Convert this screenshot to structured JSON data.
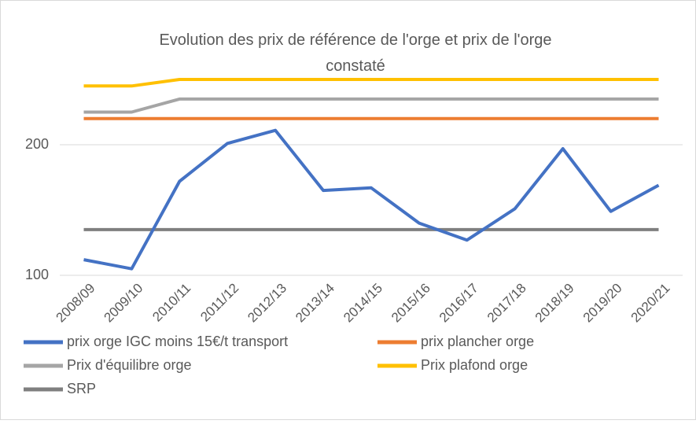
{
  "chart_data": {
    "type": "line",
    "title": "Evolution des prix de référence de l'orge et prix de l'orge constaté",
    "categories": [
      "2008/09",
      "2009/10",
      "2010/11",
      "2011/12",
      "2012/13",
      "2013/14",
      "2014/15",
      "2015/16",
      "2016/17",
      "2017/18",
      "2018/19",
      "2019/20",
      "2020/21"
    ],
    "series": [
      {
        "name": "prix orge IGC moins 15€/t transport",
        "color": "#4472c4",
        "values": [
          112,
          105,
          172,
          201,
          211,
          165,
          167,
          140,
          127,
          151,
          197,
          149,
          169
        ]
      },
      {
        "name": "prix plancher orge",
        "color": "#ed7d31",
        "values": [
          220,
          220,
          220,
          220,
          220,
          220,
          220,
          220,
          220,
          220,
          220,
          220,
          220
        ]
      },
      {
        "name": "Prix d'équilibre orge",
        "color": "#a5a5a5",
        "values": [
          225,
          225,
          235,
          235,
          235,
          235,
          235,
          235,
          235,
          235,
          235,
          235,
          235
        ]
      },
      {
        "name": "Prix plafond orge",
        "color": "#ffc000",
        "values": [
          245,
          245,
          250,
          250,
          250,
          250,
          250,
          250,
          250,
          250,
          250,
          250,
          250
        ]
      },
      {
        "name": "SRP",
        "color": "#7f7f7f",
        "values": [
          135,
          135,
          135,
          135,
          135,
          135,
          135,
          135,
          135,
          135,
          135,
          135,
          135
        ]
      }
    ],
    "ylim": [
      100,
      300
    ],
    "yticks": [
      100,
      200
    ],
    "grid": true
  }
}
